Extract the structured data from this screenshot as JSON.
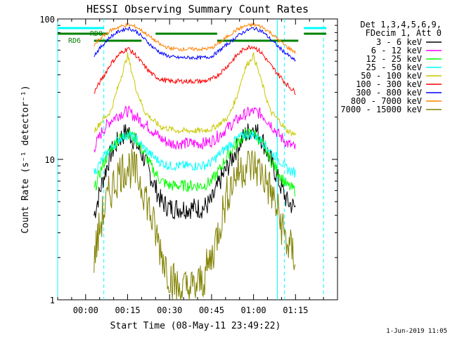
{
  "chart_data": {
    "type": "line",
    "title": "HESSI Observing Summary Count Rates",
    "xlabel": "Start Time (08-May-11 23:49:22)",
    "ylabel": "Count Rate (s⁻¹ detector⁻¹)",
    "y_scale": "log",
    "ylim": [
      1,
      100
    ],
    "xlim_minutes": [
      -10,
      90
    ],
    "x_ticks": [
      {
        "label": "00:00",
        "min": 0
      },
      {
        "label": "00:15",
        "min": 15
      },
      {
        "label": "00:30",
        "min": 30
      },
      {
        "label": "00:45",
        "min": 45
      },
      {
        "label": "01:00",
        "min": 60
      },
      {
        "label": "01:15",
        "min": 75
      }
    ],
    "y_ticks": [
      {
        "label": "1",
        "v": 1
      },
      {
        "label": "10",
        "v": 10
      },
      {
        "label": "100",
        "v": 100
      }
    ],
    "legend": {
      "position": "right",
      "header": [
        "Det 1,3,4,5,6,9,",
        "FDecim 1, Att 0"
      ]
    },
    "series": [
      {
        "name": "3 - 6 keV",
        "color": "#000000",
        "x": [
          3,
          6,
          9,
          12,
          15,
          18,
          21,
          24,
          27,
          30,
          33,
          36,
          39,
          42,
          45,
          48,
          51,
          54,
          57,
          60,
          63,
          66,
          69,
          72,
          75
        ],
        "y": [
          4,
          7,
          11,
          14,
          16,
          13,
          10,
          7,
          5,
          4.5,
          4.5,
          4.5,
          4.5,
          4.5,
          5,
          7,
          9,
          12,
          15,
          17,
          14,
          10,
          7,
          5,
          4.5
        ]
      },
      {
        "name": "6 - 12 keV",
        "color": "#ff00ff",
        "x": [
          3,
          6,
          9,
          12,
          15,
          18,
          21,
          24,
          27,
          30,
          33,
          36,
          39,
          42,
          45,
          48,
          51,
          54,
          57,
          60,
          63,
          66,
          69,
          72,
          75
        ],
        "y": [
          12,
          16,
          19,
          21,
          22,
          20,
          18,
          16,
          14,
          13,
          13,
          13,
          13,
          13,
          13.5,
          15,
          17,
          19,
          21,
          22,
          21,
          18,
          15,
          13,
          12
        ]
      },
      {
        "name": "12 - 25 keV",
        "color": "#00ff00",
        "x": [
          3,
          6,
          9,
          12,
          15,
          18,
          21,
          24,
          27,
          30,
          33,
          36,
          39,
          42,
          45,
          48,
          51,
          54,
          57,
          60,
          63,
          66,
          69,
          72,
          75
        ],
        "y": [
          6,
          9,
          12,
          14,
          15.5,
          14,
          11,
          8.5,
          7,
          6.5,
          6.5,
          6.5,
          6.5,
          6.5,
          7,
          8.5,
          11,
          13,
          15,
          15.5,
          13,
          10,
          8,
          6.5,
          6
        ]
      },
      {
        "name": "25 - 50 keV",
        "color": "#00ffff",
        "x": [
          3,
          6,
          9,
          12,
          15,
          18,
          21,
          24,
          27,
          30,
          33,
          36,
          39,
          42,
          45,
          48,
          51,
          54,
          57,
          60,
          63,
          66,
          69,
          72,
          75
        ],
        "y": [
          8,
          10,
          12,
          14,
          15,
          14,
          12,
          10.5,
          9.5,
          9,
          9,
          9,
          9,
          9,
          9.5,
          11,
          12.5,
          14,
          15,
          15,
          13.5,
          11.5,
          10,
          8.5,
          8
        ]
      },
      {
        "name": "50 - 100 keV",
        "color": "#c8c800",
        "x": [
          3,
          6,
          9,
          12,
          15,
          18,
          21,
          24,
          27,
          30,
          33,
          36,
          39,
          42,
          45,
          48,
          51,
          54,
          57,
          60,
          63,
          66,
          69,
          72,
          75
        ],
        "y": [
          16,
          19,
          22,
          35,
          55,
          32,
          22,
          19,
          17,
          16.5,
          16,
          16,
          16,
          16,
          16.5,
          18,
          20,
          28,
          45,
          55,
          35,
          22,
          19,
          16,
          15
        ]
      },
      {
        "name": "100 - 300 keV",
        "color": "#ff0000",
        "x": [
          3,
          6,
          9,
          12,
          15,
          18,
          21,
          24,
          27,
          30,
          33,
          36,
          39,
          42,
          45,
          48,
          51,
          54,
          57,
          60,
          63,
          66,
          69,
          72,
          75
        ],
        "y": [
          30,
          38,
          48,
          56,
          62,
          55,
          46,
          40,
          37,
          36,
          36,
          36,
          36,
          36,
          37,
          41,
          47,
          55,
          62,
          64,
          57,
          47,
          40,
          34,
          30
        ]
      },
      {
        "name": "300 - 800 keV",
        "color": "#0000ff",
        "x": [
          3,
          6,
          9,
          12,
          15,
          18,
          21,
          24,
          27,
          30,
          33,
          36,
          39,
          42,
          45,
          48,
          51,
          54,
          57,
          60,
          63,
          66,
          69,
          72,
          75
        ],
        "y": [
          55,
          65,
          75,
          82,
          86,
          82,
          72,
          63,
          57,
          54,
          53,
          53,
          53,
          53,
          54,
          60,
          67,
          75,
          82,
          86,
          82,
          72,
          63,
          56,
          50
        ]
      },
      {
        "name": "800 - 7000 keV",
        "color": "#ff8000",
        "x": [
          3,
          6,
          9,
          12,
          15,
          18,
          21,
          24,
          27,
          30,
          33,
          36,
          39,
          42,
          45,
          48,
          51,
          54,
          57,
          60,
          63,
          66,
          69,
          72,
          75
        ],
        "y": [
          65,
          75,
          83,
          88,
          91,
          88,
          80,
          72,
          65,
          62,
          61,
          61,
          61,
          61,
          62,
          68,
          76,
          84,
          89,
          91,
          88,
          80,
          71,
          63,
          58
        ]
      },
      {
        "name": "7000 - 15000 keV",
        "color": "#808000",
        "x": [
          3,
          6,
          9,
          12,
          15,
          18,
          21,
          24,
          27,
          30,
          33,
          36,
          39,
          42,
          45,
          48,
          51,
          54,
          57,
          60,
          63,
          66,
          69,
          72,
          75
        ],
        "y": [
          2,
          4,
          6,
          8,
          9,
          8,
          6,
          3.5,
          2.2,
          1.5,
          1.2,
          1.2,
          1.2,
          1.4,
          2,
          3.5,
          6,
          8,
          9,
          9,
          8,
          6,
          4,
          2.5,
          2
        ]
      }
    ],
    "annotations": [
      {
        "label": "RD0",
        "color": "#008000"
      },
      {
        "label": "RD6",
        "color": "#008000"
      }
    ],
    "timestamp": "1-Jun-2019 11:05"
  }
}
